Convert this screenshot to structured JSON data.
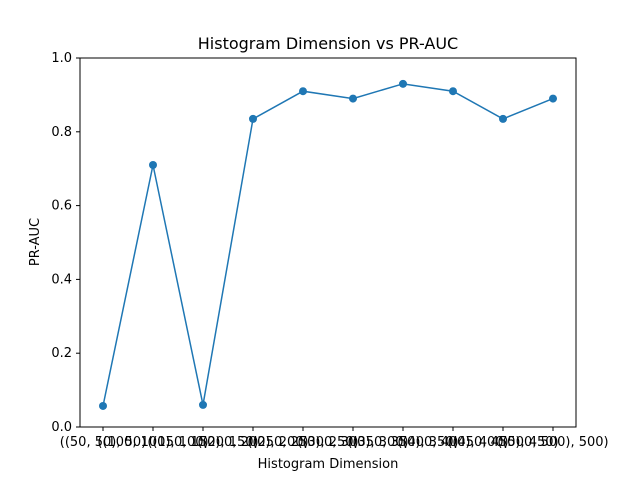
{
  "chart_data": {
    "type": "line",
    "title": "Histogram Dimension vs PR-AUC",
    "xlabel": "Histogram Dimension",
    "ylabel": "PR-AUC",
    "categories": [
      "((50, 50), 50)",
      "((100, 100), 100)",
      "((150, 150), 150)",
      "((200, 200), 200)",
      "((250, 250), 250)",
      "((300, 300), 300)",
      "((350, 350), 350)",
      "((400, 400), 400)",
      "((450, 450), 450)",
      "((500, 500), 500)"
    ],
    "series": [
      {
        "values": [
          0.057,
          0.71,
          0.06,
          0.835,
          0.91,
          0.89,
          0.93,
          0.91,
          0.835,
          0.89
        ]
      }
    ],
    "ylim": [
      0,
      1.0
    ],
    "yticks": [
      0.0,
      0.2,
      0.4,
      0.6,
      0.8,
      1.0
    ],
    "ytick_labels": [
      "0.0",
      "0.2",
      "0.4",
      "0.6",
      "0.8",
      "1.0"
    ],
    "grid": false,
    "legend": false,
    "colors": {
      "line": "#1f77b4",
      "marker": "#1f77b4",
      "axes": "#000000",
      "background": "#ffffff"
    }
  }
}
